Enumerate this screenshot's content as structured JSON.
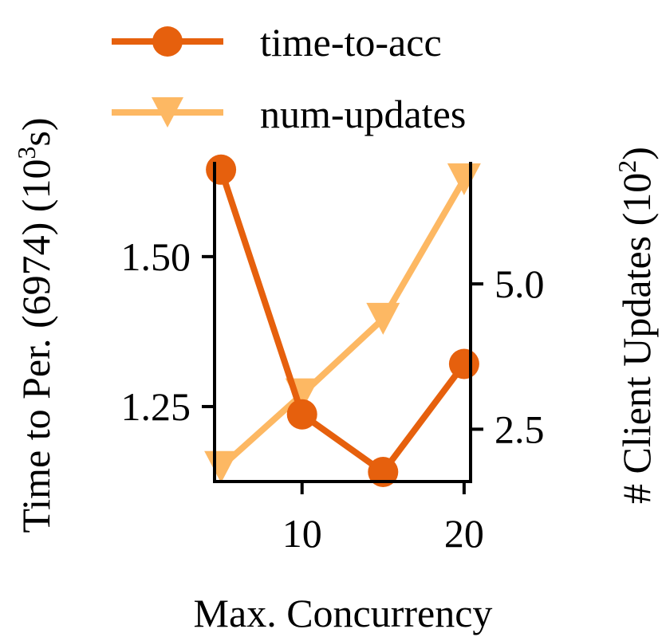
{
  "chart_data": {
    "type": "line",
    "xlabel": "Max. Concurrency",
    "ylabel_left": "Time to Per. (6974) (10",
    "ylabel_left_exp": "3",
    "ylabel_left_unit": "s)",
    "ylabel_right": "# Client Updates (10",
    "ylabel_right_exp": "2",
    "ylabel_right_unit": ")",
    "x": [
      5,
      10,
      15,
      20
    ],
    "x_ticks": [
      10,
      20
    ],
    "x_tick_labels": [
      "10",
      "20"
    ],
    "xlim": [
      4.6,
      20.4
    ],
    "y_left_ticks": [
      1.25,
      1.5
    ],
    "y_left_tick_labels": [
      "1.25",
      "1.50"
    ],
    "ylim_left": [
      1.125,
      1.658
    ],
    "y_right_ticks": [
      2.5,
      5.0
    ],
    "y_right_tick_labels": [
      "2.5",
      "5.0"
    ],
    "ylim_right": [
      1.6,
      7.1
    ],
    "series": [
      {
        "name": "time-to-acc",
        "axis": "left",
        "marker": "circle",
        "color": "#e6600d",
        "values": [
          1.645,
          1.237,
          1.141,
          1.321
        ]
      },
      {
        "name": "num-updates",
        "axis": "right",
        "marker": "triangle-down",
        "color": "#fdb863",
        "values": [
          1.85,
          3.1,
          4.4,
          6.8
        ]
      }
    ],
    "legend_position": "top",
    "grid": false
  }
}
